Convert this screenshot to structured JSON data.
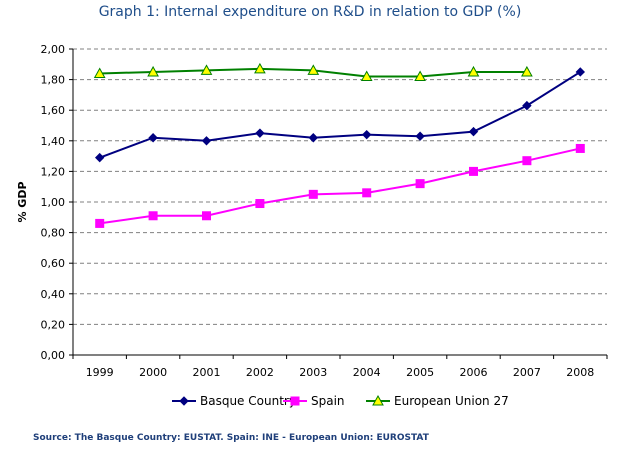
{
  "chart_data": {
    "type": "line",
    "title": "Graph 1: Internal expenditure on R&D in relation to GDP (%)",
    "xlabel": "",
    "ylabel": "% GDP",
    "categories": [
      "1999",
      "2000",
      "2001",
      "2002",
      "2003",
      "2004",
      "2005",
      "2006",
      "2007",
      "2008"
    ],
    "ylim": [
      0,
      2
    ],
    "yticks": [
      "0,00",
      "0,20",
      "0,40",
      "0,60",
      "0,80",
      "1,00",
      "1,20",
      "1,40",
      "1,60",
      "1,80",
      "2,00"
    ],
    "grid": true,
    "legend_position": "bottom",
    "series": [
      {
        "name": "Basque Country",
        "marker": "diamond",
        "color": "#000080",
        "values": [
          1.29,
          1.42,
          1.4,
          1.45,
          1.42,
          1.44,
          1.43,
          1.46,
          1.63,
          1.85
        ]
      },
      {
        "name": "Spain",
        "marker": "square",
        "color": "#ff00ff",
        "values": [
          0.86,
          0.91,
          0.91,
          0.99,
          1.05,
          1.06,
          1.12,
          1.2,
          1.27,
          1.35
        ]
      },
      {
        "name": "European Union 27",
        "marker": "triangle",
        "color": "#008000",
        "fill": "#ffff00",
        "values": [
          1.84,
          1.85,
          1.86,
          1.87,
          1.86,
          1.82,
          1.82,
          1.85,
          1.85,
          null
        ]
      }
    ],
    "source": "Source: The Basque Country: EUSTAT. Spain: INE - European Union: EUROSTAT"
  }
}
